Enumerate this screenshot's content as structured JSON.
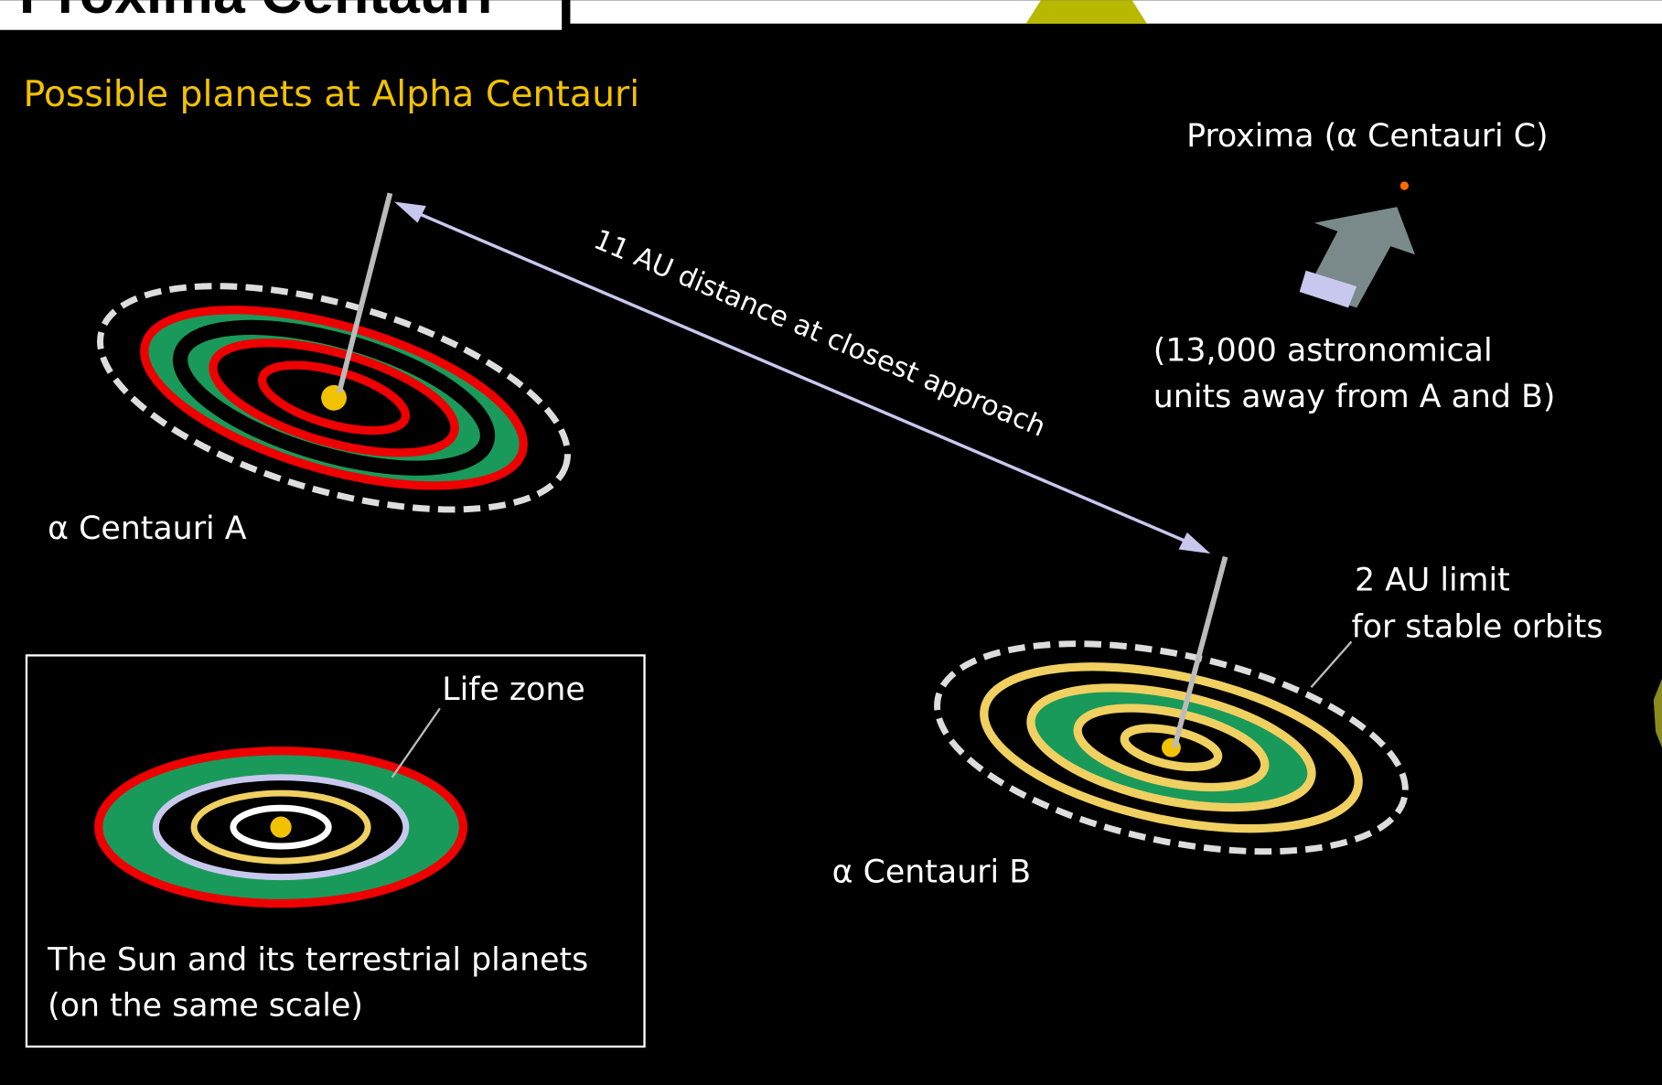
{
  "header": {
    "title": "Proxima Centauri"
  },
  "diagram": {
    "title": "Possible planets at Alpha Centauri",
    "proxima": {
      "label": "Proxima (α Centauri C)",
      "note_lines": [
        "(13,000 astronomical",
        "units away from A and B)"
      ]
    },
    "distance_label": "11 AU distance at closest approach",
    "star_a": {
      "label": "α Centauri A"
    },
    "star_b": {
      "label": "α Centauri B",
      "limit_lines": [
        "2 AU limit",
        "for stable orbits"
      ]
    },
    "sun_inset": {
      "life_zone": "Life zone",
      "caption_lines": [
        "The Sun and its terrestrial planets",
        "(on the same scale)"
      ]
    }
  }
}
